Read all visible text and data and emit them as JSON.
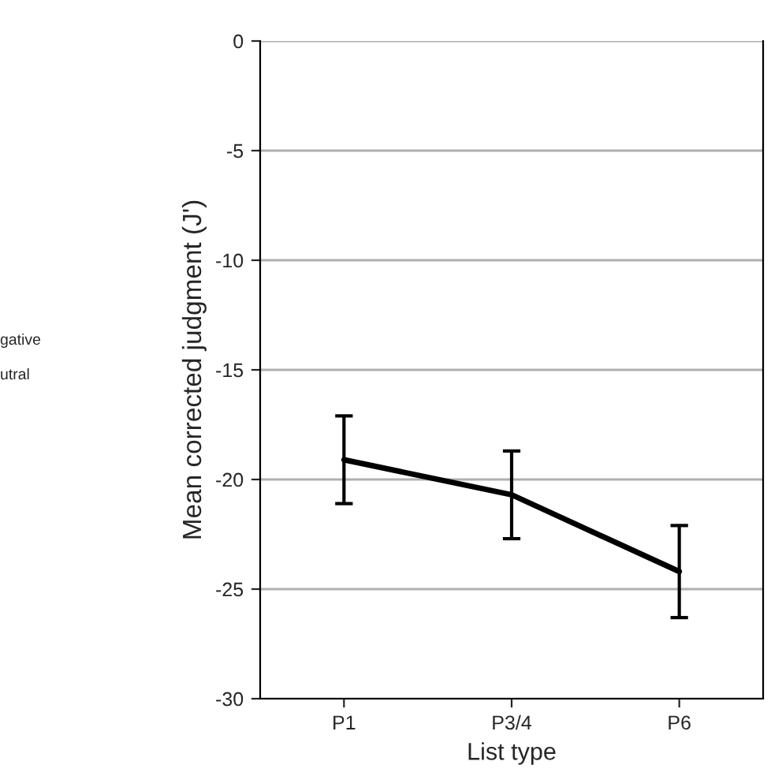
{
  "chart_data": {
    "type": "line",
    "xlabel": "List type",
    "ylabel": "Mean corrected judgment (J')",
    "categories": [
      "P1",
      "P3/4",
      "P6"
    ],
    "series": [
      {
        "color": "#000000",
        "values": [
          -19.1,
          -20.7,
          -24.2
        ],
        "errors": [
          2.0,
          2.0,
          2.1
        ]
      }
    ],
    "ylim": [
      -30,
      0
    ],
    "yticks": [
      -30,
      -25,
      -20,
      -15,
      -10,
      -5,
      0
    ],
    "grid": "y",
    "marker": "none",
    "line_style": "solid",
    "annotations": [
      "gative",
      "utral"
    ]
  }
}
